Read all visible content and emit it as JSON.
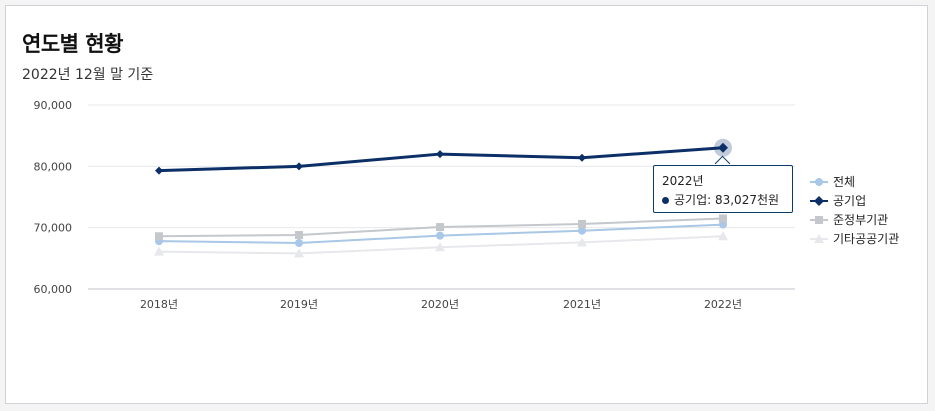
{
  "header": {
    "title": "연도별 현황",
    "subtitle": "2022년 12월 말 기준"
  },
  "chart_data": {
    "type": "line",
    "categories": [
      "2018년",
      "2019년",
      "2020년",
      "2021년",
      "2022년"
    ],
    "ylim": [
      60000,
      90000
    ],
    "yticks": [
      60000,
      70000,
      80000,
      90000
    ],
    "ytick_labels": [
      "60,000",
      "70,000",
      "80,000",
      "90,000"
    ],
    "grid": true,
    "legend_position": "right",
    "series": [
      {
        "name": "전체",
        "values": [
          67800,
          67500,
          68700,
          69500,
          70500
        ],
        "color": "#a9c7e6",
        "marker": "circle"
      },
      {
        "name": "공기업",
        "values": [
          79300,
          80000,
          82000,
          81400,
          83027
        ],
        "color": "#0b2f66",
        "marker": "diamond"
      },
      {
        "name": "준정부기관",
        "values": [
          68600,
          68800,
          70100,
          70600,
          71500
        ],
        "color": "#c4c7cc",
        "marker": "square"
      },
      {
        "name": "기타공공기관",
        "values": [
          66100,
          65800,
          66800,
          67600,
          68600
        ],
        "color": "#e6e8eb",
        "marker": "triangle"
      }
    ],
    "highlight": {
      "series": 1,
      "index": 4
    }
  },
  "tooltip": {
    "title": "2022년",
    "label": "공기업: 83,027천원"
  }
}
